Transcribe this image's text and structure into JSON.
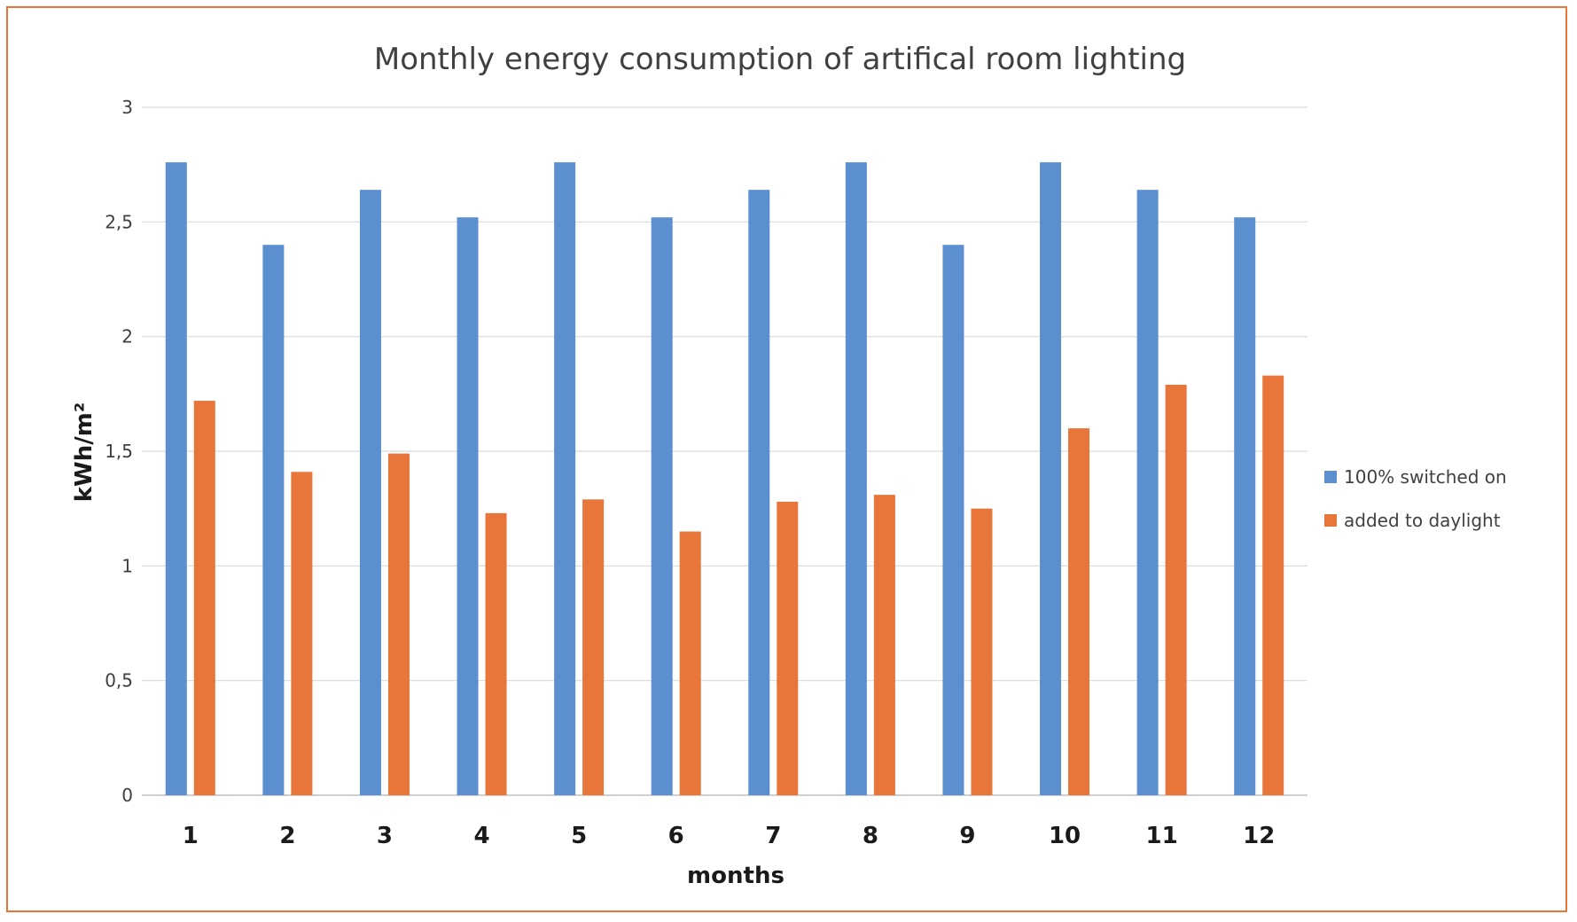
{
  "chart_data": {
    "type": "bar",
    "title": "Monthly energy consumption of artifical room lighting",
    "xlabel": "months",
    "ylabel": "kWh/m²",
    "categories": [
      "1",
      "2",
      "3",
      "4",
      "5",
      "6",
      "7",
      "8",
      "9",
      "10",
      "11",
      "12"
    ],
    "series": [
      {
        "name": "100% switched on",
        "color": "#5b8fd0",
        "values": [
          2.76,
          2.4,
          2.64,
          2.52,
          2.76,
          2.52,
          2.64,
          2.76,
          2.4,
          2.76,
          2.64,
          2.52
        ]
      },
      {
        "name": "added to daylight",
        "color": "#e8763a",
        "values": [
          1.72,
          1.41,
          1.49,
          1.23,
          1.29,
          1.15,
          1.28,
          1.31,
          1.25,
          1.6,
          1.79,
          1.83
        ]
      }
    ],
    "ylim": [
      0,
      3
    ],
    "yticks": [
      {
        "value": 0,
        "label": "0"
      },
      {
        "value": 0.5,
        "label": "0,5"
      },
      {
        "value": 1,
        "label": "1"
      },
      {
        "value": 1.5,
        "label": "1,5"
      },
      {
        "value": 2,
        "label": "2"
      },
      {
        "value": 2.5,
        "label": "2,5"
      },
      {
        "value": 3,
        "label": "3"
      }
    ],
    "grid": true,
    "legend_position": "right"
  },
  "colors": {
    "border": "#e8763a",
    "grid": "#d9d9d9",
    "axis": "#bfbfbf"
  }
}
